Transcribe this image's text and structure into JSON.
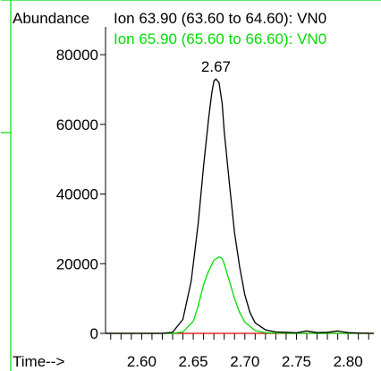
{
  "chart_data": {
    "type": "line",
    "ylabel": "Abundance",
    "xlabel": "Time-->",
    "xlim": [
      2.565,
      2.825
    ],
    "ylim": [
      0,
      84000
    ],
    "x_ticks": [
      "2.60",
      "2.65",
      "2.70",
      "2.75",
      "2.80"
    ],
    "y_ticks": [
      "0",
      "20000",
      "40000",
      "60000",
      "80000"
    ],
    "peak_annotation": {
      "label": "2.67",
      "x": 2.672,
      "y": 73000
    },
    "series": [
      {
        "name": "Ion  63.90 (63.60 to 64.60): VN0",
        "color": "#000000",
        "x": [
          2.565,
          2.62,
          2.63,
          2.64,
          2.648,
          2.655,
          2.66,
          2.665,
          2.668,
          2.67,
          2.672,
          2.675,
          2.678,
          2.68,
          2.685,
          2.69,
          2.695,
          2.7,
          2.705,
          2.71,
          2.72,
          2.73,
          2.74,
          2.75,
          2.76,
          2.77,
          2.78,
          2.79,
          2.8,
          2.81,
          2.825
        ],
        "y": [
          0,
          0,
          300,
          4000,
          15000,
          32000,
          48000,
          62000,
          69000,
          72500,
          73000,
          72000,
          66000,
          58000,
          43000,
          29000,
          19000,
          11000,
          6000,
          3000,
          1000,
          400,
          300,
          150,
          700,
          200,
          300,
          700,
          200,
          100,
          0
        ]
      },
      {
        "name": "Ion  65.90 (65.60 to 66.60): VN0",
        "color": "#00dd00",
        "x": [
          2.565,
          2.63,
          2.64,
          2.65,
          2.655,
          2.66,
          2.665,
          2.67,
          2.675,
          2.678,
          2.68,
          2.685,
          2.69,
          2.695,
          2.7,
          2.71,
          2.72,
          2.73,
          2.75,
          2.825
        ],
        "y": [
          0,
          0,
          400,
          3500,
          8000,
          14000,
          18000,
          21000,
          22000,
          21500,
          20000,
          15000,
          10000,
          6000,
          3200,
          800,
          200,
          100,
          0,
          0
        ]
      },
      {
        "name": "",
        "color": "#dd0000",
        "x": [
          2.565,
          2.825
        ],
        "y": [
          0,
          0
        ]
      }
    ]
  }
}
